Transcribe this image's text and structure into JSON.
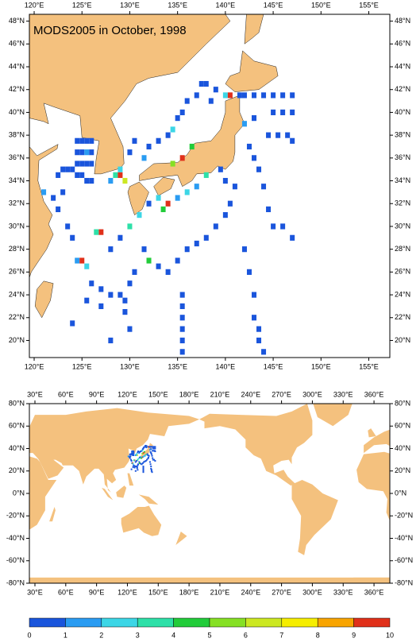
{
  "title": "MODS2005 in October, 1998",
  "maps": [
    {
      "xlim": [
        119.5,
        157.2
      ],
      "ylim": [
        18.5,
        48.6
      ],
      "xticks": [
        {
          "value": 120,
          "label": "120°E"
        },
        {
          "value": 125,
          "label": "125°E"
        },
        {
          "value": 130,
          "label": "130°E"
        },
        {
          "value": 135,
          "label": "135°E"
        },
        {
          "value": 140,
          "label": "140°E"
        },
        {
          "value": 145,
          "label": "145°E"
        },
        {
          "value": 150,
          "label": "150°E"
        },
        {
          "value": 155,
          "label": "155°E"
        }
      ],
      "yticks": [
        {
          "value": 20,
          "label": "20°N"
        },
        {
          "value": 22,
          "label": "22°N"
        },
        {
          "value": 24,
          "label": "24°N"
        },
        {
          "value": 26,
          "label": "26°N"
        },
        {
          "value": 28,
          "label": "28°N"
        },
        {
          "value": 30,
          "label": "30°N"
        },
        {
          "value": 32,
          "label": "32°N"
        },
        {
          "value": 34,
          "label": "34°N"
        },
        {
          "value": 36,
          "label": "36°N"
        },
        {
          "value": 38,
          "label": "38°N"
        },
        {
          "value": 40,
          "label": "40°N"
        },
        {
          "value": 42,
          "label": "42°N"
        },
        {
          "value": 44,
          "label": "44°N"
        },
        {
          "value": 46,
          "label": "46°N"
        },
        {
          "value": 48,
          "label": "48°N"
        }
      ]
    },
    {
      "xlim": [
        24.6,
        375.4
      ],
      "ylim": [
        -80,
        80
      ],
      "xticks": [
        {
          "value": 30,
          "label": "30°E"
        },
        {
          "value": 60,
          "label": "60°E"
        },
        {
          "value": 90,
          "label": "90°E"
        },
        {
          "value": 120,
          "label": "120°E"
        },
        {
          "value": 150,
          "label": "150°E"
        },
        {
          "value": 180,
          "label": "180°E"
        },
        {
          "value": 210,
          "label": "210°E"
        },
        {
          "value": 240,
          "label": "240°E"
        },
        {
          "value": 270,
          "label": "270°E"
        },
        {
          "value": 300,
          "label": "300°E"
        },
        {
          "value": 330,
          "label": "330°E"
        },
        {
          "value": 360,
          "label": "360°E"
        }
      ],
      "yticks": [
        {
          "value": -80,
          "label": "-80°N"
        },
        {
          "value": -60,
          "label": "-60°N"
        },
        {
          "value": -40,
          "label": "-40°N"
        },
        {
          "value": -20,
          "label": "-20°N"
        },
        {
          "value": 0,
          "label": "0°N"
        },
        {
          "value": 20,
          "label": "20°N"
        },
        {
          "value": 40,
          "label": "40°N"
        },
        {
          "value": 60,
          "label": "60°N"
        },
        {
          "value": 80,
          "label": "80°N"
        }
      ]
    }
  ],
  "colorbar": {
    "ticks": [
      0,
      1,
      2,
      3,
      4,
      5,
      6,
      7,
      8,
      9,
      10
    ],
    "colors": [
      "#1a55dc",
      "#2a9cf2",
      "#3cd6e6",
      "#2ee0a8",
      "#22cc3a",
      "#86e024",
      "#cce822",
      "#f6ee00",
      "#f8a400",
      "#e0301a"
    ]
  },
  "observations": {
    "lon": [
      124.5,
      125,
      125.5,
      126,
      124.5,
      125,
      125.5,
      126,
      124.5,
      125,
      125.5,
      126,
      123,
      123.5,
      124,
      124.5,
      125,
      125.5,
      126,
      122.5,
      128.5,
      129,
      129.5,
      128,
      129,
      130,
      130.5,
      131.5,
      132,
      133,
      134,
      134.5,
      135,
      135.5,
      136,
      137,
      137.5,
      138.5,
      136.5,
      135.5,
      134.5,
      138,
      139,
      140,
      140.5,
      141.5,
      142,
      143,
      144,
      145,
      146,
      147,
      145,
      146,
      147,
      144.5,
      145.5,
      146.5,
      147,
      143,
      142,
      142.5,
      143,
      143.5,
      144,
      144.5,
      145,
      138,
      139.5,
      140,
      141,
      137,
      136,
      135,
      134,
      133.5,
      133,
      132,
      131,
      130,
      129,
      128,
      131.5,
      132,
      133,
      134,
      135,
      136,
      137,
      138,
      139,
      140,
      140.5,
      127,
      126.5,
      124.5,
      125,
      125.5,
      126,
      127,
      128,
      129,
      130,
      130.5,
      129.5,
      129.5,
      127,
      125.5,
      124,
      128,
      130,
      135.5,
      135.5,
      135.5,
      135.5,
      135.5,
      135.5,
      143,
      143,
      143.5,
      143.5,
      144,
      142.5,
      142,
      146,
      147,
      121,
      122,
      123,
      122.5,
      123.5,
      124,
      124.5
    ],
    "lat": [
      37.5,
      37.5,
      37.5,
      37.5,
      36.5,
      36.5,
      36.5,
      36.5,
      35.5,
      35.5,
      35.5,
      35.5,
      35,
      35,
      35,
      34.5,
      34.5,
      34,
      34,
      34.5,
      34.5,
      34.5,
      34,
      34,
      35,
      36.5,
      37.5,
      36,
      37,
      37.5,
      38,
      38.5,
      39.5,
      40,
      41,
      41.5,
      42.5,
      41,
      37,
      36,
      35.5,
      42.5,
      42,
      41.5,
      41.5,
      41.5,
      41.5,
      41.5,
      41.5,
      41.5,
      41.5,
      41.5,
      40,
      40,
      40,
      38,
      38,
      38,
      37.5,
      39.5,
      39,
      37,
      36,
      35,
      33.5,
      31.5,
      30,
      34.5,
      35,
      34,
      33.5,
      33.5,
      33,
      32.5,
      32,
      31.5,
      32.5,
      32,
      31,
      30,
      29,
      28,
      28,
      27,
      26.5,
      26,
      27,
      28,
      28.5,
      29,
      30,
      31,
      32,
      29.5,
      29.5,
      27,
      27,
      26.5,
      25,
      24.5,
      24,
      24,
      25,
      26,
      22.5,
      23.5,
      23,
      23.5,
      21.5,
      20,
      21,
      24,
      23,
      22,
      21,
      20,
      19,
      24,
      22,
      21,
      20,
      19,
      26,
      28,
      30,
      29,
      33,
      32.5,
      33,
      31.5,
      30,
      29,
      28
    ],
    "values": [
      0.5,
      0.5,
      0.5,
      0.5,
      0.5,
      0.5,
      1.5,
      0.5,
      0.5,
      0.5,
      0.5,
      0.5,
      0.5,
      0.5,
      0.5,
      0.5,
      0.5,
      0.5,
      0.5,
      0.5,
      3.5,
      9.5,
      6.5,
      1.5,
      2.5,
      0.5,
      0.5,
      1.5,
      0.5,
      0.5,
      0.5,
      2.5,
      0.5,
      0.5,
      0.5,
      0.5,
      0.5,
      0.5,
      4.5,
      9.5,
      5.5,
      0.5,
      0.5,
      2.5,
      9.5,
      0.5,
      0.5,
      0.5,
      0.5,
      0.5,
      0.5,
      0.5,
      0.5,
      0.5,
      0.5,
      0.5,
      0.5,
      0.5,
      0.5,
      0.5,
      1.5,
      0.5,
      0.5,
      0.5,
      0.5,
      0.5,
      0.5,
      3.5,
      0.5,
      0.5,
      0.5,
      1.5,
      2.5,
      1.5,
      9.5,
      4.5,
      2.5,
      0.5,
      2.5,
      3.5,
      0.5,
      0.5,
      0.5,
      4.5,
      0.5,
      0.5,
      0.5,
      0.5,
      0.5,
      0.5,
      0.5,
      0.5,
      0.5,
      9.5,
      3.5,
      1.5,
      9.5,
      2.5,
      0.5,
      0.5,
      0.5,
      0.5,
      0.5,
      0.5,
      0.5,
      0.5,
      0.5,
      0.5,
      0.5,
      0.5,
      0.5,
      0.5,
      0.5,
      0.5,
      0.5,
      0.5,
      0.5,
      0.5,
      0.5,
      0.5,
      0.5,
      0.5,
      0.5,
      0.5,
      0.5,
      0.5,
      1.5,
      0.5,
      0.5,
      0.5,
      0.5,
      0.5
    ]
  }
}
